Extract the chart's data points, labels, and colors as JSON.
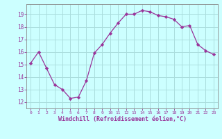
{
  "x": [
    0,
    1,
    2,
    3,
    4,
    5,
    6,
    7,
    8,
    9,
    10,
    11,
    12,
    13,
    14,
    15,
    16,
    17,
    18,
    19,
    20,
    21,
    22,
    23
  ],
  "y": [
    15.1,
    16.0,
    14.7,
    13.4,
    13.0,
    12.3,
    12.4,
    13.7,
    15.9,
    16.6,
    17.5,
    18.3,
    19.0,
    19.0,
    19.3,
    19.2,
    18.9,
    18.8,
    18.6,
    18.0,
    18.1,
    16.6,
    16.1,
    15.8
  ],
  "line_color": "#993399",
  "marker": "D",
  "marker_size": 2.2,
  "background_color": "#ccffff",
  "grid_color": "#aadddd",
  "xlabel": "Windchill (Refroidissement éolien,°C)",
  "xlabel_color": "#993399",
  "tick_color": "#993399",
  "spine_color": "#888888",
  "ylim": [
    11.5,
    19.8
  ],
  "xlim": [
    -0.5,
    23.5
  ],
  "yticks": [
    12,
    13,
    14,
    15,
    16,
    17,
    18,
    19
  ],
  "xticks": [
    0,
    1,
    2,
    3,
    4,
    5,
    6,
    7,
    8,
    9,
    10,
    11,
    12,
    13,
    14,
    15,
    16,
    17,
    18,
    19,
    20,
    21,
    22,
    23
  ]
}
